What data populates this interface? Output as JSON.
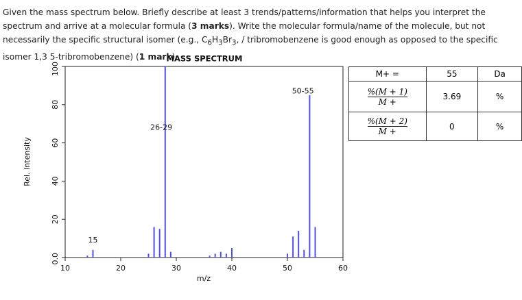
{
  "question": {
    "parts": [
      "Given the mass spectrum below.  Briefly describe at least 3 trends/patterns/information that helps you interpret the spectrum and arrive at a molecular formula (",
      "3 marks",
      "). Write the molecular formula/name of the molecule, but not necessarily the specific structural isomer (e.g., ",
      "C",
      "6",
      "H",
      "3",
      "Br",
      "3",
      ", / tribromobenzene is good enough as opposed to the specific isomer 1,3 5-tribromobenzene) (",
      "1 mark",
      ")."
    ]
  },
  "chart_data": {
    "type": "stem",
    "title": "MASS SPECTRUM",
    "x_label": "m/z",
    "y_label": "Rel. Intensity",
    "color": "#4f4ff0",
    "x": [
      14,
      15,
      25,
      26,
      27,
      28,
      29,
      36,
      37,
      38,
      39,
      40,
      50,
      51,
      52,
      53,
      54,
      55
    ],
    "values": [
      1,
      4,
      2,
      16,
      15,
      100,
      3,
      1,
      2,
      3,
      2,
      5,
      2,
      11,
      14,
      4,
      85,
      16
    ],
    "xlim": [
      10,
      60
    ],
    "xticks": [
      10,
      20,
      30,
      40,
      50,
      60
    ],
    "ylim": [
      0,
      100
    ],
    "yticks": [
      {
        "value": 0,
        "label": "0.0"
      },
      20,
      40,
      60,
      80,
      100
    ],
    "annotations": [
      {
        "text": "15",
        "x": 15,
        "y": 9
      },
      {
        "text": "26-29",
        "x": 27.3,
        "y": 68
      },
      {
        "text": "50-55",
        "x": 52.8,
        "y": 87
      }
    ]
  },
  "table": {
    "rows": [
      [
        "M+ =",
        "55",
        "Da"
      ],
      [
        {
          "num": "%(M + 1)",
          "den": "M +"
        },
        "3.69",
        "%"
      ],
      [
        {
          "num": "%(M + 2)",
          "den": "M +"
        },
        "0",
        "%"
      ]
    ]
  }
}
